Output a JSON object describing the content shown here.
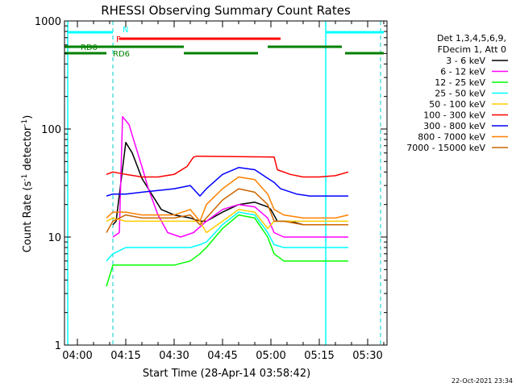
{
  "chart_data": {
    "type": "line",
    "title": "RHESSI Observing Summary Count Rates",
    "xlabel": "Start Time (28-Apr-14 03:58:42)",
    "ylabel_base": "Count Rate (s",
    "ylabel_sup": "-1",
    "ylabel_rest": " detector",
    "ylabel_sup2": "-1",
    "ylabel_end": ")",
    "yscale": "log",
    "ylim": [
      1,
      1000
    ],
    "xlim_minutes": [
      -4,
      96
    ],
    "x_tick_minutes": [
      0,
      15,
      30,
      45,
      60,
      75,
      90
    ],
    "x_tick_labels": [
      "04:00",
      "04:15",
      "04:30",
      "04:45",
      "05:00",
      "05:15",
      "05:30"
    ],
    "y_ticks": [
      1,
      10,
      100,
      1000
    ],
    "y_tick_labels": [
      "1",
      "10",
      "100",
      "1000"
    ],
    "footer_date": "22-Oct-2021 23:34",
    "legend_header": [
      "Det 1,3,4,5,6,9,",
      "FDecim 1, Att 0"
    ],
    "series": [
      {
        "name": "3 - 6 keV",
        "color": "#000000",
        "x": [
          11,
          12,
          15,
          17,
          20,
          23,
          26,
          30,
          35,
          38,
          40,
          45,
          50,
          55,
          59,
          60,
          62,
          66,
          70,
          75,
          80,
          84
        ],
        "y": [
          13,
          14,
          75,
          60,
          35,
          25,
          18,
          16,
          15,
          14,
          14,
          17,
          20,
          21,
          19,
          18,
          14,
          14,
          13,
          13,
          13,
          13
        ]
      },
      {
        "name": "6 - 12 keV",
        "color": "#ff00ff",
        "x": [
          11,
          13,
          14,
          16,
          18,
          20,
          22,
          25,
          28,
          32,
          36,
          40,
          45,
          50,
          55,
          59,
          61,
          64,
          68,
          72,
          76,
          80,
          84
        ],
        "y": [
          10,
          11,
          130,
          110,
          70,
          45,
          28,
          16,
          11,
          10,
          11,
          14,
          18,
          20,
          19,
          15,
          11,
          10,
          10,
          10,
          10,
          10,
          10
        ]
      },
      {
        "name": "12 - 25 keV",
        "color": "#00ff00",
        "x": [
          9,
          11,
          15,
          20,
          25,
          30,
          35,
          38,
          40,
          45,
          50,
          55,
          59,
          61,
          64,
          70,
          75,
          80,
          84
        ],
        "y": [
          3.5,
          5.5,
          5.5,
          5.5,
          5.5,
          5.5,
          6,
          7,
          8,
          12,
          16,
          15,
          10,
          7,
          6,
          6,
          6,
          6,
          6
        ]
      },
      {
        "name": "25 - 50 keV",
        "color": "#00ffff",
        "x": [
          9,
          11,
          15,
          20,
          25,
          30,
          35,
          38,
          40,
          45,
          50,
          55,
          59,
          61,
          64,
          70,
          75,
          80,
          84
        ],
        "y": [
          6,
          7,
          8,
          8,
          8,
          8,
          8,
          8.5,
          9,
          13,
          17,
          16,
          11,
          8.5,
          8,
          8,
          8,
          8,
          8
        ]
      },
      {
        "name": "50 - 100 keV",
        "color": "#ffcc00",
        "x": [
          9,
          11,
          15,
          20,
          25,
          30,
          35,
          38,
          40,
          45,
          50,
          55,
          59,
          61,
          64,
          70,
          75,
          80,
          84
        ],
        "y": [
          14,
          15,
          14,
          14,
          14,
          14,
          14,
          14,
          11,
          14,
          18,
          17,
          12,
          14,
          14,
          14,
          14,
          14,
          14
        ]
      },
      {
        "name": "100 - 300 keV",
        "color": "#ff0000",
        "x": [
          9,
          11,
          15,
          20,
          25,
          30,
          34,
          36,
          37,
          61,
          62,
          66,
          70,
          75,
          80,
          84
        ],
        "y": [
          38,
          40,
          38,
          36,
          36,
          38,
          45,
          55,
          56,
          55,
          42,
          38,
          36,
          36,
          37,
          40
        ]
      },
      {
        "name": "300 - 800 keV",
        "color": "#0000ff",
        "x": [
          9,
          11,
          15,
          20,
          25,
          30,
          35,
          38,
          40,
          45,
          50,
          55,
          59,
          61,
          63,
          68,
          72,
          76,
          80,
          84
        ],
        "y": [
          24,
          25,
          25,
          26,
          27,
          28,
          30,
          24,
          28,
          38,
          44,
          42,
          35,
          32,
          28,
          25,
          24,
          24,
          24,
          24
        ]
      },
      {
        "name": "800 - 7000 keV",
        "color": "#ff8000",
        "x": [
          9,
          11,
          15,
          20,
          25,
          30,
          35,
          38,
          40,
          45,
          50,
          55,
          59,
          61,
          64,
          70,
          75,
          80,
          84
        ],
        "y": [
          15,
          17,
          17,
          16,
          16,
          16,
          18,
          14,
          20,
          28,
          36,
          34,
          25,
          18,
          16,
          15,
          15,
          15,
          16
        ]
      },
      {
        "name": "7000 - 15000 keV",
        "color": "#cc6600",
        "x": [
          9,
          11,
          15,
          20,
          25,
          30,
          35,
          38,
          40,
          45,
          50,
          55,
          59,
          61,
          64,
          70,
          75,
          80,
          84
        ],
        "y": [
          11,
          14,
          16,
          15,
          15,
          15,
          16,
          13,
          15,
          22,
          28,
          26,
          20,
          14,
          14,
          13,
          13,
          13,
          13
        ]
      }
    ],
    "annotations": {
      "night": {
        "label": "N",
        "color": "#00ffff",
        "segments": [
          [
            -3,
            11
          ],
          [
            77,
            95
          ]
        ]
      },
      "flare": {
        "label": "F",
        "color": "#ff0000",
        "segments": [
          [
            13,
            63
          ]
        ]
      },
      "rd0": {
        "label": "RD0",
        "color": "#008000",
        "segments": [
          [
            -4,
            33
          ],
          [
            59,
            82
          ]
        ]
      },
      "rd6": {
        "label": "RD6",
        "color": "#008000",
        "segments": [
          [
            -4,
            9
          ],
          [
            33,
            56
          ],
          [
            83,
            95
          ]
        ]
      },
      "saa_lines": [
        -3,
        77
      ],
      "dashed_lines": [
        11,
        94
      ]
    }
  }
}
